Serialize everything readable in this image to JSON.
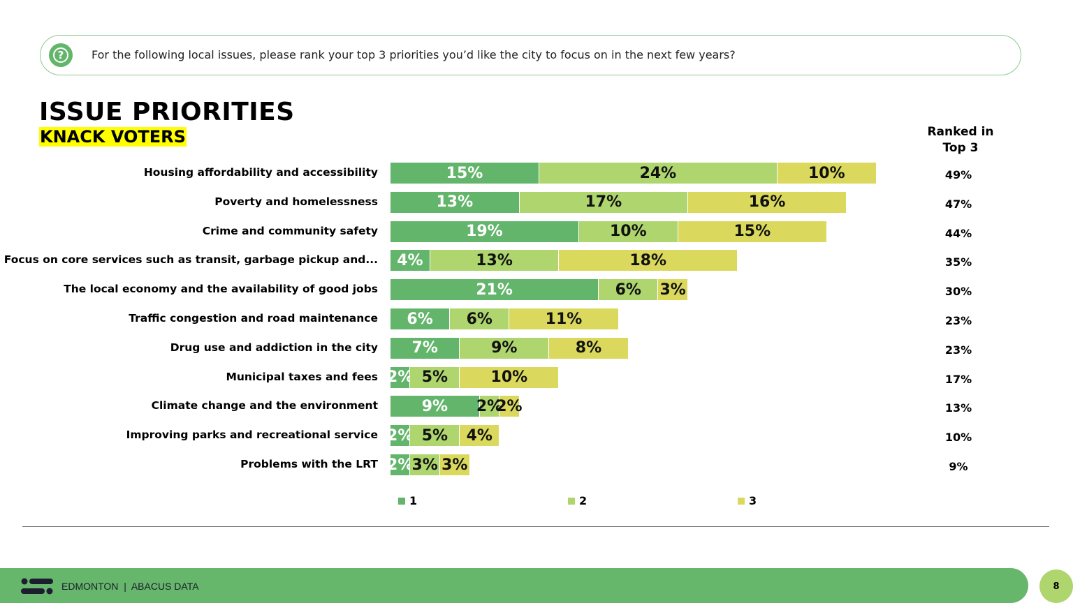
{
  "question": {
    "icon": "question-icon",
    "text": "For the following local issues, please rank your top 3 priorities you’d like the city to focus on in the next few years?"
  },
  "title": "ISSUE PRIORITIES",
  "subtitle": "KNACK VOTERS",
  "top3_header": "Ranked in Top 3",
  "chart_data": {
    "type": "bar",
    "orientation": "horizontal",
    "stacked": true,
    "categories": [
      "Housing affordability and accessibility",
      "Poverty and homelessness",
      "Crime and community safety",
      "Focus on core services such as transit, garbage pickup and...",
      "The local economy and the availability of good jobs",
      "Traffic congestion and road maintenance",
      "Drug use and addiction in the city",
      "Municipal taxes and fees",
      "Climate change and the environment",
      "Improving parks and recreational service",
      "Problems with the LRT"
    ],
    "series": [
      {
        "name": "1",
        "color": "#62b56a",
        "values": [
          15,
          13,
          19,
          4,
          21,
          6,
          7,
          2,
          9,
          2,
          2
        ]
      },
      {
        "name": "2",
        "color": "#aed56e",
        "values": [
          24,
          17,
          10,
          13,
          6,
          6,
          9,
          5,
          2,
          5,
          3
        ]
      },
      {
        "name": "3",
        "color": "#dad95e",
        "values": [
          10,
          16,
          15,
          18,
          3,
          11,
          8,
          10,
          2,
          4,
          3
        ]
      }
    ],
    "top3": [
      "49%",
      "47%",
      "44%",
      "35%",
      "30%",
      "23%",
      "23%",
      "17%",
      "13%",
      "10%",
      "9%"
    ],
    "value_suffix": "%",
    "legend_position": "bottom",
    "grid": false
  },
  "footer": {
    "text": "EDMONTON  |  ABACUS DATA",
    "page": "8"
  }
}
